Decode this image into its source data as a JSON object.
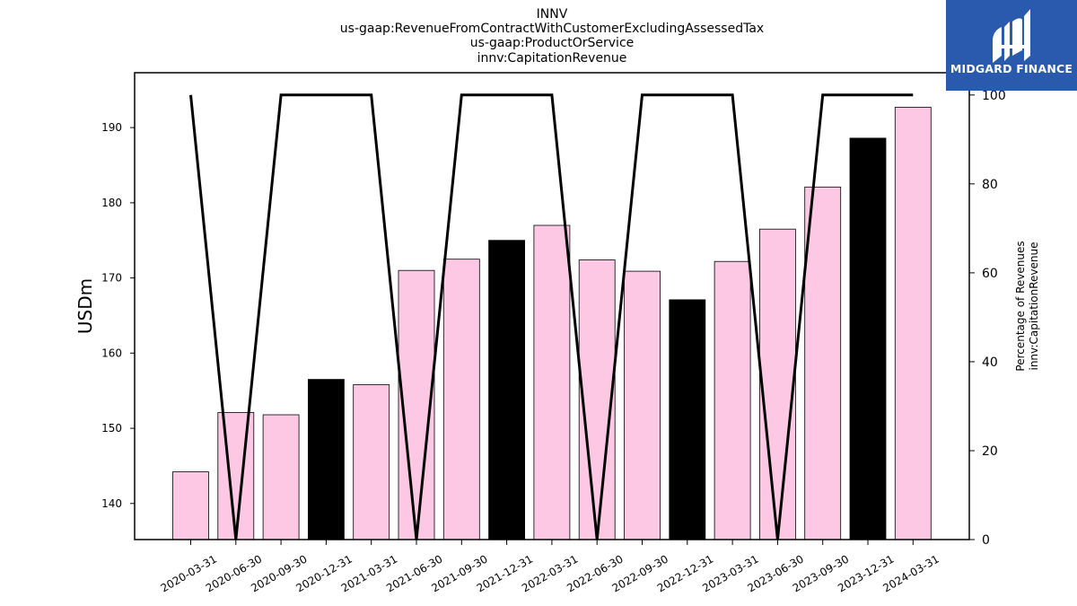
{
  "titles": [
    "INNV",
    "us-gaap:RevenueFromContractWithCustomerExcludingAssessedTax",
    "us-gaap:ProductOrService",
    "innv:CapitationRevenue"
  ],
  "logo": {
    "text": "MIDGARD FINANCE",
    "icon": "midgard-finance-logo-icon",
    "bg_color": "#2a5aad"
  },
  "colors": {
    "bar_pink": "#fcc8e4",
    "bar_black": "#000000",
    "line": "#000000"
  },
  "chart_data": {
    "type": "bar",
    "title": "",
    "xlabel": "",
    "ylabel": "USDm",
    "y2label": [
      "Percentage of Revenues",
      "innv:CapitationRevenue"
    ],
    "categories": [
      "2020-03-31",
      "2020-06-30",
      "2020-09-30",
      "2020-12-31",
      "2021-03-31",
      "2021-06-30",
      "2021-09-30",
      "2021-12-31",
      "2022-03-31",
      "2022-06-30",
      "2022-09-30",
      "2022-12-31",
      "2023-03-31",
      "2023-06-30",
      "2023-09-30",
      "2023-12-31",
      "2024-03-31"
    ],
    "values": [
      144.2,
      152.1,
      151.8,
      156.5,
      155.8,
      171.0,
      172.5,
      175.0,
      177.0,
      172.4,
      170.9,
      167.1,
      172.2,
      176.5,
      182.1,
      188.6,
      192.7
    ],
    "bar_colors": [
      "pink",
      "pink",
      "pink",
      "black",
      "pink",
      "pink",
      "pink",
      "black",
      "pink",
      "pink",
      "pink",
      "black",
      "pink",
      "pink",
      "pink",
      "black",
      "pink"
    ],
    "ylim": [
      135.2,
      197.3
    ],
    "yticks": [
      140,
      150,
      160,
      170,
      180,
      190
    ],
    "line_series": {
      "axis": "right",
      "values": [
        100,
        0,
        100,
        100,
        100,
        0,
        100,
        100,
        100,
        0,
        100,
        100,
        100,
        0,
        100,
        100,
        100
      ]
    },
    "y2lim": [
      0,
      105
    ],
    "y2ticks": [
      0,
      20,
      40,
      60,
      80,
      100
    ],
    "grid": false,
    "legend": "none"
  }
}
